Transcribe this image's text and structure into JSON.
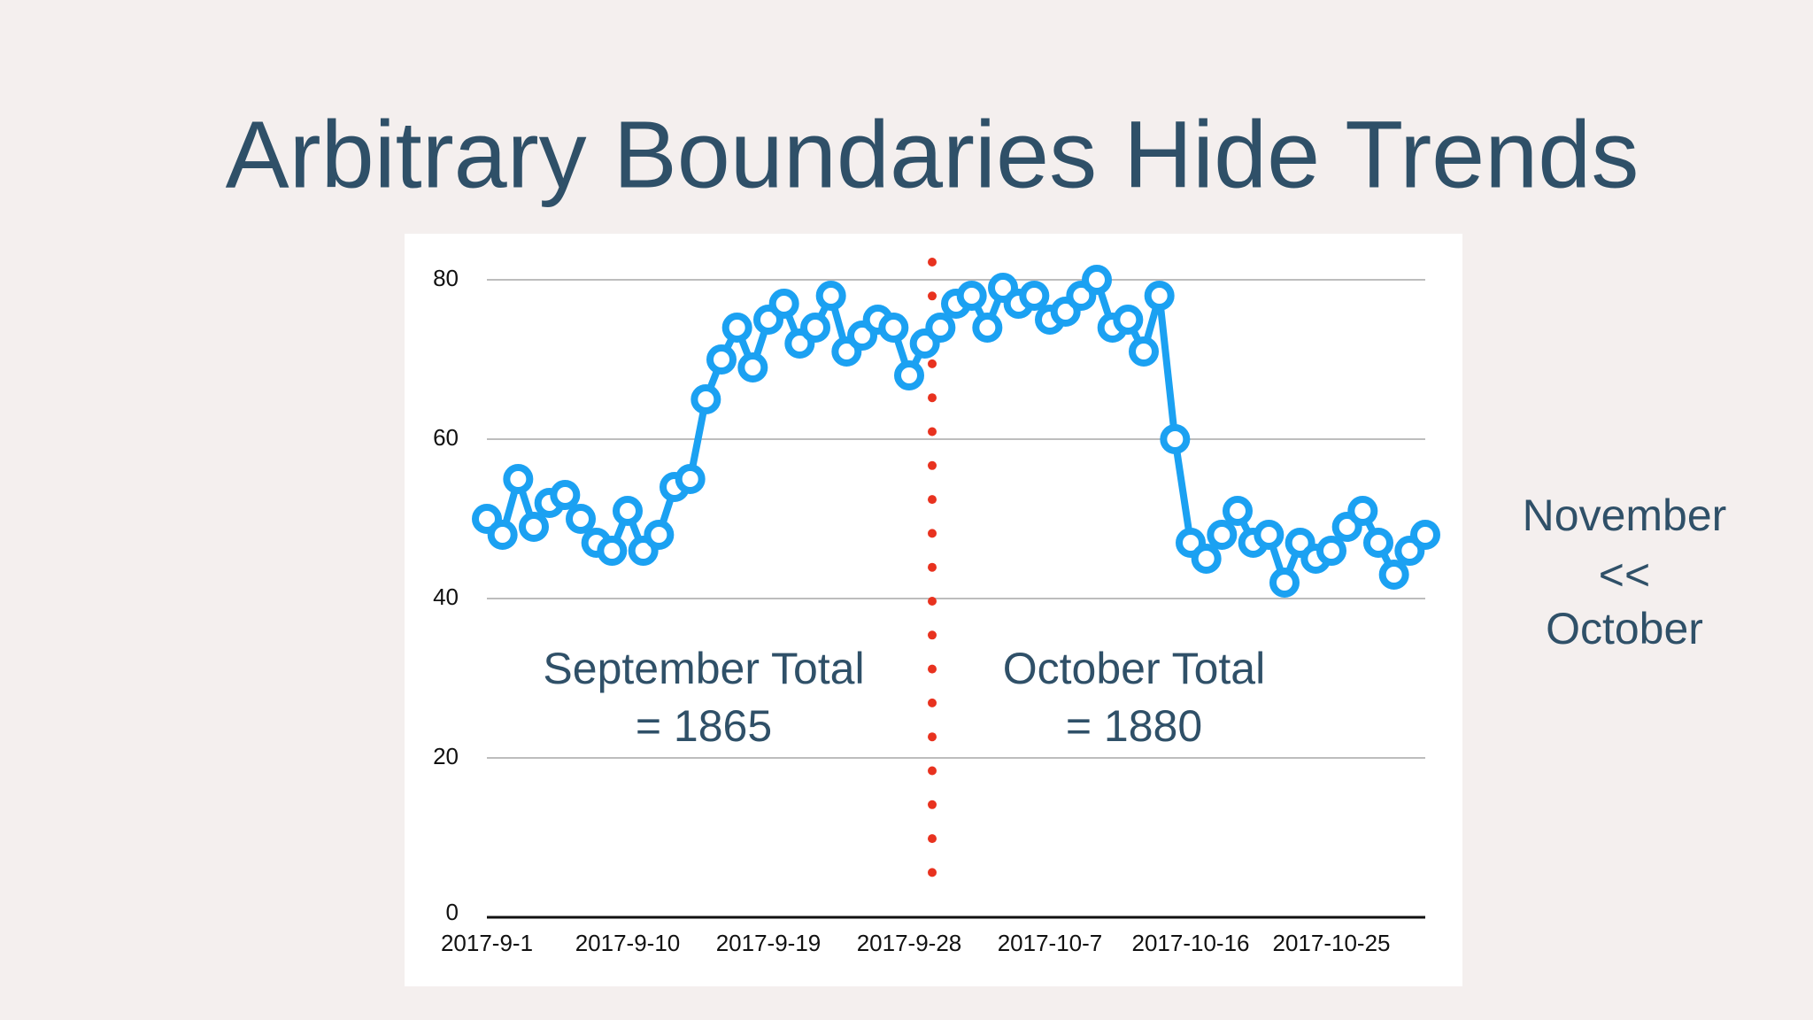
{
  "chart_data": {
    "type": "line",
    "title": "Arbitrary Boundaries Hide Trends",
    "categories": [
      "2017-9-1",
      null,
      null,
      null,
      null,
      null,
      null,
      null,
      null,
      "2017-9-10",
      null,
      null,
      null,
      null,
      null,
      null,
      null,
      null,
      "2017-9-19",
      null,
      null,
      null,
      null,
      null,
      null,
      null,
      null,
      "2017-9-28",
      null,
      null,
      null,
      null,
      null,
      null,
      null,
      null,
      "2017-10-7",
      null,
      null,
      null,
      null,
      null,
      null,
      null,
      null,
      "2017-10-16",
      null,
      null,
      null,
      null,
      null,
      null,
      null,
      null,
      "2017-10-25",
      null,
      null,
      null,
      null,
      null,
      null
    ],
    "values": [
      50,
      48,
      55,
      49,
      52,
      53,
      50,
      47,
      46,
      51,
      46,
      48,
      54,
      55,
      65,
      70,
      74,
      69,
      75,
      77,
      72,
      74,
      78,
      71,
      73,
      75,
      74,
      68,
      72,
      74,
      77,
      78,
      74,
      79,
      77,
      78,
      75,
      76,
      78,
      80,
      74,
      75,
      71,
      78,
      60,
      47,
      45,
      48,
      51,
      47,
      48,
      42,
      47,
      45,
      46,
      49,
      51,
      47,
      43,
      46,
      48
    ],
    "color": "#1ba1f2",
    "ylim": [
      0,
      80
    ],
    "yticks": [
      0,
      20,
      40,
      60,
      80
    ],
    "grid": true,
    "annotations": [
      "September Total",
      "= 1865",
      "October Total",
      "= 1880",
      "November",
      "<<",
      "October"
    ]
  }
}
